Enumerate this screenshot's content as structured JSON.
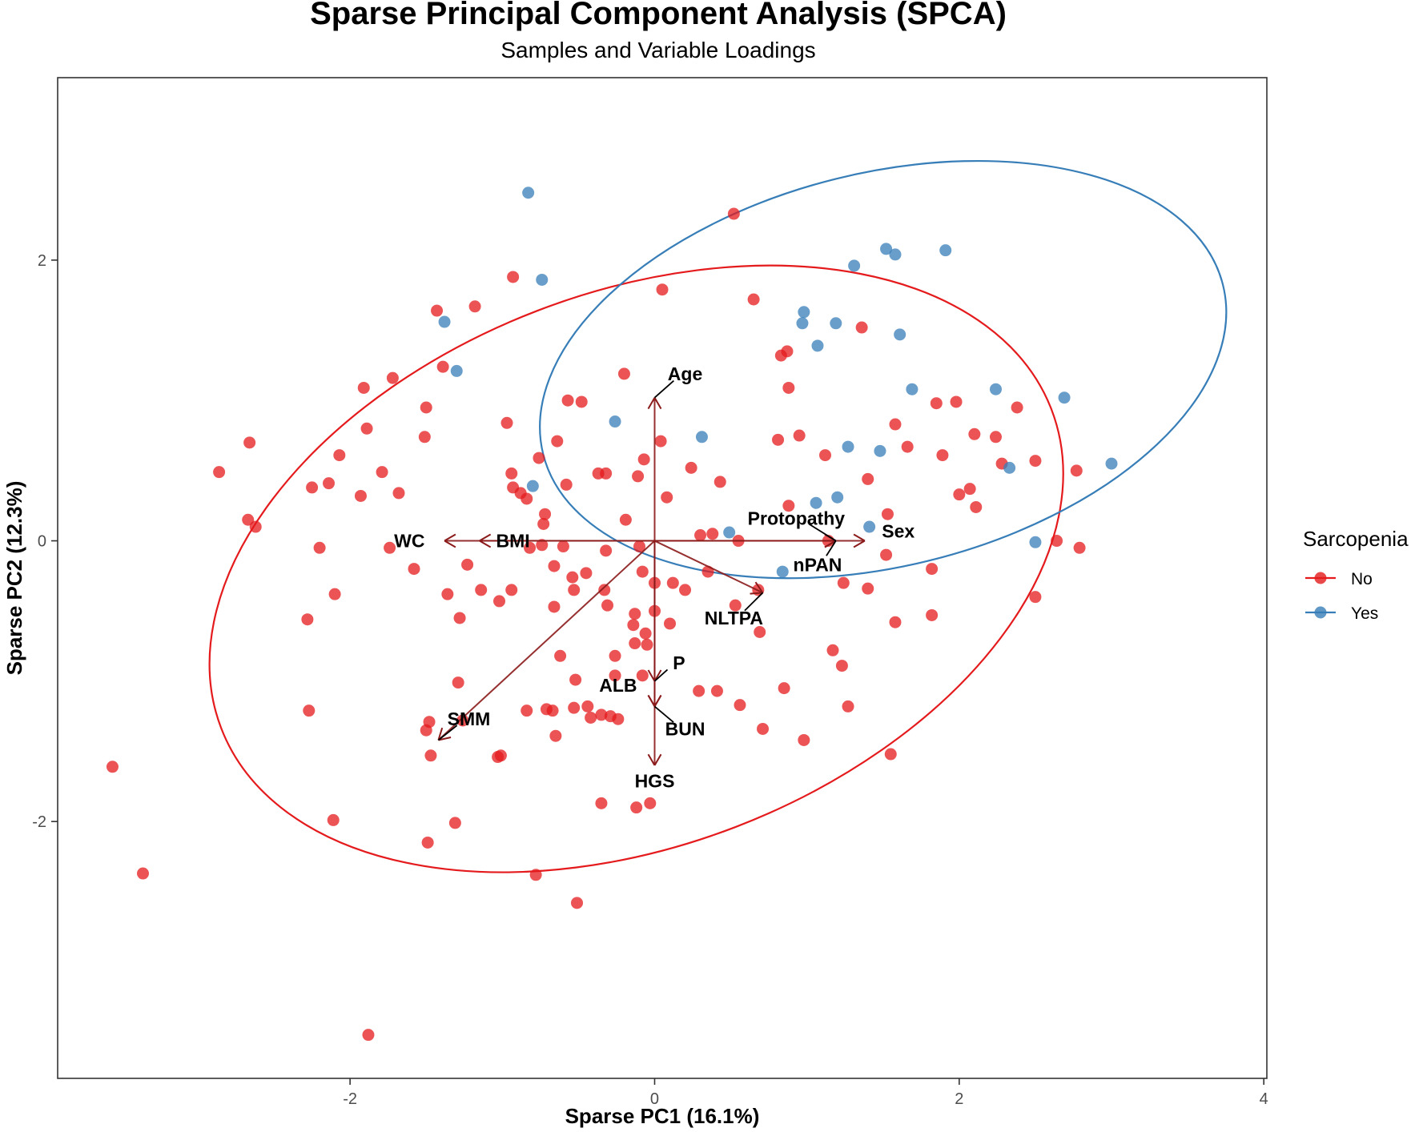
{
  "chart_data": {
    "type": "scatter",
    "title": "Sparse Principal Component Analysis (SPCA)",
    "subtitle": "Samples and Variable Loadings",
    "xlabel": "Sparse PC1 (16.1%)",
    "ylabel": "Sparse PC2 (12.3%)",
    "xlim": [
      -3.92,
      4.02
    ],
    "ylim": [
      -3.83,
      3.3
    ],
    "x_ticks": [
      -2,
      0,
      2,
      4
    ],
    "y_ticks": [
      -2,
      0,
      2
    ],
    "grid": false,
    "legend": {
      "title": "Sarcopenia",
      "position": "right",
      "entries": [
        {
          "label": "No",
          "color": "#E41A1C"
        },
        {
          "label": "Yes",
          "color": "#377EB8"
        }
      ]
    },
    "series": [
      {
        "name": "No",
        "color": "#E41A1C",
        "points": [
          [
            0.52,
            2.33
          ],
          [
            -0.93,
            1.88
          ],
          [
            0.05,
            1.79
          ],
          [
            0.65,
            1.72
          ],
          [
            -1.43,
            1.64
          ],
          [
            -1.18,
            1.67
          ],
          [
            -1.39,
            1.24
          ],
          [
            -0.2,
            1.19
          ],
          [
            0.83,
            1.32
          ],
          [
            0.87,
            1.35
          ],
          [
            1.36,
            1.52
          ],
          [
            -1.91,
            1.09
          ],
          [
            -1.72,
            1.16
          ],
          [
            -1.5,
            0.95
          ],
          [
            -0.57,
            1.0
          ],
          [
            -0.48,
            0.99
          ],
          [
            -0.97,
            0.84
          ],
          [
            0.88,
            1.09
          ],
          [
            -2.66,
            0.7
          ],
          [
            -1.51,
            0.74
          ],
          [
            -1.89,
            0.8
          ],
          [
            -2.07,
            0.61
          ],
          [
            -0.64,
            0.71
          ],
          [
            0.04,
            0.71
          ],
          [
            0.81,
            0.72
          ],
          [
            0.95,
            0.75
          ],
          [
            1.58,
            0.83
          ],
          [
            2.1,
            0.76
          ],
          [
            2.24,
            0.74
          ],
          [
            1.85,
            0.98
          ],
          [
            1.98,
            0.99
          ],
          [
            2.38,
            0.95
          ],
          [
            -2.86,
            0.49
          ],
          [
            -1.79,
            0.49
          ],
          [
            -0.94,
            0.48
          ],
          [
            -0.37,
            0.48
          ],
          [
            -0.32,
            0.48
          ],
          [
            -0.76,
            0.59
          ],
          [
            -0.07,
            0.58
          ],
          [
            1.12,
            0.61
          ],
          [
            1.66,
            0.67
          ],
          [
            1.89,
            0.61
          ],
          [
            2.28,
            0.55
          ],
          [
            2.5,
            0.57
          ],
          [
            2.77,
            0.5
          ],
          [
            -2.25,
            0.38
          ],
          [
            -2.14,
            0.41
          ],
          [
            -1.93,
            0.32
          ],
          [
            -1.68,
            0.34
          ],
          [
            -0.93,
            0.38
          ],
          [
            -0.88,
            0.34
          ],
          [
            -0.84,
            0.3
          ],
          [
            -0.58,
            0.4
          ],
          [
            -0.11,
            0.46
          ],
          [
            0.24,
            0.52
          ],
          [
            0.43,
            0.42
          ],
          [
            1.4,
            0.44
          ],
          [
            2.0,
            0.33
          ],
          [
            2.07,
            0.37
          ],
          [
            2.11,
            0.24
          ],
          [
            0.08,
            0.31
          ],
          [
            -2.67,
            0.15
          ],
          [
            -2.62,
            0.1
          ],
          [
            -0.72,
            0.19
          ],
          [
            -0.19,
            0.15
          ],
          [
            -0.73,
            0.12
          ],
          [
            0.88,
            0.25
          ],
          [
            1.53,
            0.19
          ],
          [
            0.3,
            0.04
          ],
          [
            0.38,
            0.05
          ],
          [
            0.55,
            0.0
          ],
          [
            -2.2,
            -0.05
          ],
          [
            -1.74,
            -0.05
          ],
          [
            -0.74,
            -0.03
          ],
          [
            -0.82,
            -0.05
          ],
          [
            -0.6,
            -0.04
          ],
          [
            -0.32,
            -0.07
          ],
          [
            -0.1,
            -0.04
          ],
          [
            1.14,
            0.0
          ],
          [
            1.52,
            -0.1
          ],
          [
            2.64,
            0.0
          ],
          [
            2.79,
            -0.05
          ],
          [
            -1.58,
            -0.2
          ],
          [
            -1.23,
            -0.17
          ],
          [
            -0.66,
            -0.18
          ],
          [
            -0.54,
            -0.26
          ],
          [
            -0.45,
            -0.23
          ],
          [
            -0.33,
            -0.35
          ],
          [
            -0.53,
            -0.35
          ],
          [
            -0.31,
            -0.46
          ],
          [
            -0.08,
            -0.22
          ],
          [
            0.0,
            -0.3
          ],
          [
            0.12,
            -0.3
          ],
          [
            0.2,
            -0.35
          ],
          [
            0.35,
            -0.22
          ],
          [
            0.68,
            -0.35
          ],
          [
            0.53,
            -0.46
          ],
          [
            1.24,
            -0.3
          ],
          [
            1.4,
            -0.34
          ],
          [
            1.82,
            -0.2
          ],
          [
            -2.1,
            -0.38
          ],
          [
            -1.36,
            -0.38
          ],
          [
            -1.14,
            -0.35
          ],
          [
            -0.94,
            -0.35
          ],
          [
            -1.02,
            -0.43
          ],
          [
            -1.28,
            -0.55
          ],
          [
            -2.28,
            -0.56
          ],
          [
            -0.66,
            -0.47
          ],
          [
            -0.13,
            -0.52
          ],
          [
            0.0,
            -0.5
          ],
          [
            0.1,
            -0.59
          ],
          [
            0.69,
            -0.65
          ],
          [
            1.58,
            -0.58
          ],
          [
            1.82,
            -0.53
          ],
          [
            2.5,
            -0.4
          ],
          [
            -0.14,
            -0.6
          ],
          [
            -0.06,
            -0.66
          ],
          [
            -0.13,
            -0.73
          ],
          [
            -0.05,
            -0.74
          ],
          [
            -0.62,
            -0.82
          ],
          [
            -0.26,
            -0.82
          ],
          [
            1.17,
            -0.78
          ],
          [
            1.23,
            -0.89
          ],
          [
            -1.29,
            -1.01
          ],
          [
            -0.52,
            -0.99
          ],
          [
            -0.26,
            -0.96
          ],
          [
            -0.08,
            -0.96
          ],
          [
            0.29,
            -1.07
          ],
          [
            0.41,
            -1.07
          ],
          [
            0.85,
            -1.05
          ],
          [
            -2.27,
            -1.21
          ],
          [
            -1.48,
            -1.29
          ],
          [
            -1.26,
            -1.28
          ],
          [
            -0.84,
            -1.21
          ],
          [
            -0.67,
            -1.21
          ],
          [
            -0.71,
            -1.2
          ],
          [
            -0.53,
            -1.19
          ],
          [
            -0.44,
            -1.18
          ],
          [
            -0.35,
            -1.24
          ],
          [
            -0.42,
            -1.26
          ],
          [
            -0.29,
            -1.25
          ],
          [
            -0.24,
            -1.27
          ],
          [
            0.56,
            -1.17
          ],
          [
            1.27,
            -1.18
          ],
          [
            -1.5,
            -1.35
          ],
          [
            -0.65,
            -1.39
          ],
          [
            -1.47,
            -1.53
          ],
          [
            -1.03,
            -1.54
          ],
          [
            -1.01,
            -1.53
          ],
          [
            0.71,
            -1.34
          ],
          [
            0.98,
            -1.42
          ],
          [
            1.55,
            -1.52
          ],
          [
            -3.56,
            -1.61
          ],
          [
            -2.11,
            -1.99
          ],
          [
            -1.31,
            -2.01
          ],
          [
            -0.35,
            -1.87
          ],
          [
            -0.12,
            -1.9
          ],
          [
            -0.03,
            -1.87
          ],
          [
            -1.49,
            -2.15
          ],
          [
            -3.36,
            -2.37
          ],
          [
            -0.78,
            -2.38
          ],
          [
            -0.51,
            -2.58
          ],
          [
            -1.88,
            -3.52
          ]
        ]
      },
      {
        "name": "Yes",
        "color": "#377EB8",
        "points": [
          [
            -0.83,
            2.48
          ],
          [
            -0.74,
            1.86
          ],
          [
            -1.38,
            1.56
          ],
          [
            -1.3,
            1.21
          ],
          [
            1.91,
            2.07
          ],
          [
            1.52,
            2.08
          ],
          [
            1.58,
            2.04
          ],
          [
            1.31,
            1.96
          ],
          [
            0.98,
            1.63
          ],
          [
            0.97,
            1.55
          ],
          [
            1.19,
            1.55
          ],
          [
            1.61,
            1.47
          ],
          [
            1.07,
            1.39
          ],
          [
            1.69,
            1.08
          ],
          [
            2.24,
            1.08
          ],
          [
            2.69,
            1.02
          ],
          [
            -0.26,
            0.85
          ],
          [
            0.31,
            0.74
          ],
          [
            1.27,
            0.67
          ],
          [
            1.48,
            0.64
          ],
          [
            2.33,
            0.52
          ],
          [
            3.0,
            0.55
          ],
          [
            -0.8,
            0.39
          ],
          [
            1.2,
            0.31
          ],
          [
            1.06,
            0.27
          ],
          [
            0.49,
            0.06
          ],
          [
            1.41,
            0.1
          ],
          [
            2.5,
            -0.01
          ],
          [
            0.84,
            -0.22
          ]
        ]
      }
    ],
    "ellipses": [
      {
        "group": "No",
        "cx": -0.12,
        "cy": -0.2,
        "rx": 2.92,
        "ry": 1.97,
        "rotation_deg": 21,
        "color": "#E41A1C"
      },
      {
        "group": "Yes",
        "cx": 1.5,
        "cy": 1.22,
        "rx": 2.3,
        "ry": 1.4,
        "rotation_deg": 14,
        "color": "#377EB8"
      }
    ],
    "loadings": {
      "color": "#8B1A1A",
      "arrows": [
        {
          "name": "Age",
          "x": 0.0,
          "y": 1.02,
          "label_x": 0.2,
          "label_y": 1.19,
          "label_anchor": "middle",
          "leader": true
        },
        {
          "name": "WC",
          "x": -1.38,
          "y": 0.0,
          "label_x": -1.61,
          "label_y": 0.0,
          "label_anchor": "middle",
          "leader": false
        },
        {
          "name": "BMI",
          "x": -1.15,
          "y": 0.0,
          "label_x": -0.93,
          "label_y": 0.0,
          "label_anchor": "middle",
          "leader": false
        },
        {
          "name": "Protopathy",
          "x": 1.19,
          "y": 0.0,
          "label_x": 0.93,
          "label_y": 0.16,
          "label_anchor": "middle",
          "leader": true
        },
        {
          "name": "Sex",
          "x": 1.38,
          "y": 0.0,
          "label_x": 1.6,
          "label_y": 0.07,
          "label_anchor": "middle",
          "leader": false
        },
        {
          "name": "nPAN",
          "x": 1.19,
          "y": 0.0,
          "label_x": 1.07,
          "label_y": -0.17,
          "label_anchor": "middle",
          "leader": true
        },
        {
          "name": "NLTPA",
          "x": 0.71,
          "y": -0.37,
          "label_x": 0.52,
          "label_y": -0.55,
          "label_anchor": "middle",
          "leader": true
        },
        {
          "name": "P",
          "x": 0.0,
          "y": -1.0,
          "label_x": 0.16,
          "label_y": -0.87,
          "label_anchor": "middle",
          "leader": true
        },
        {
          "name": "ALB",
          "x": 0.0,
          "y": -1.18,
          "label_x": -0.24,
          "label_y": -1.03,
          "label_anchor": "middle",
          "leader": false
        },
        {
          "name": "BUN",
          "x": 0.0,
          "y": -1.18,
          "label_x": 0.2,
          "label_y": -1.34,
          "label_anchor": "middle",
          "leader": true
        },
        {
          "name": "HGS",
          "x": 0.0,
          "y": -1.6,
          "label_x": 0.0,
          "label_y": -1.71,
          "label_anchor": "middle",
          "leader": false
        },
        {
          "name": "SMM",
          "x": -1.42,
          "y": -1.42,
          "label_x": -1.22,
          "label_y": -1.27,
          "label_anchor": "middle",
          "leader": true
        }
      ]
    }
  }
}
